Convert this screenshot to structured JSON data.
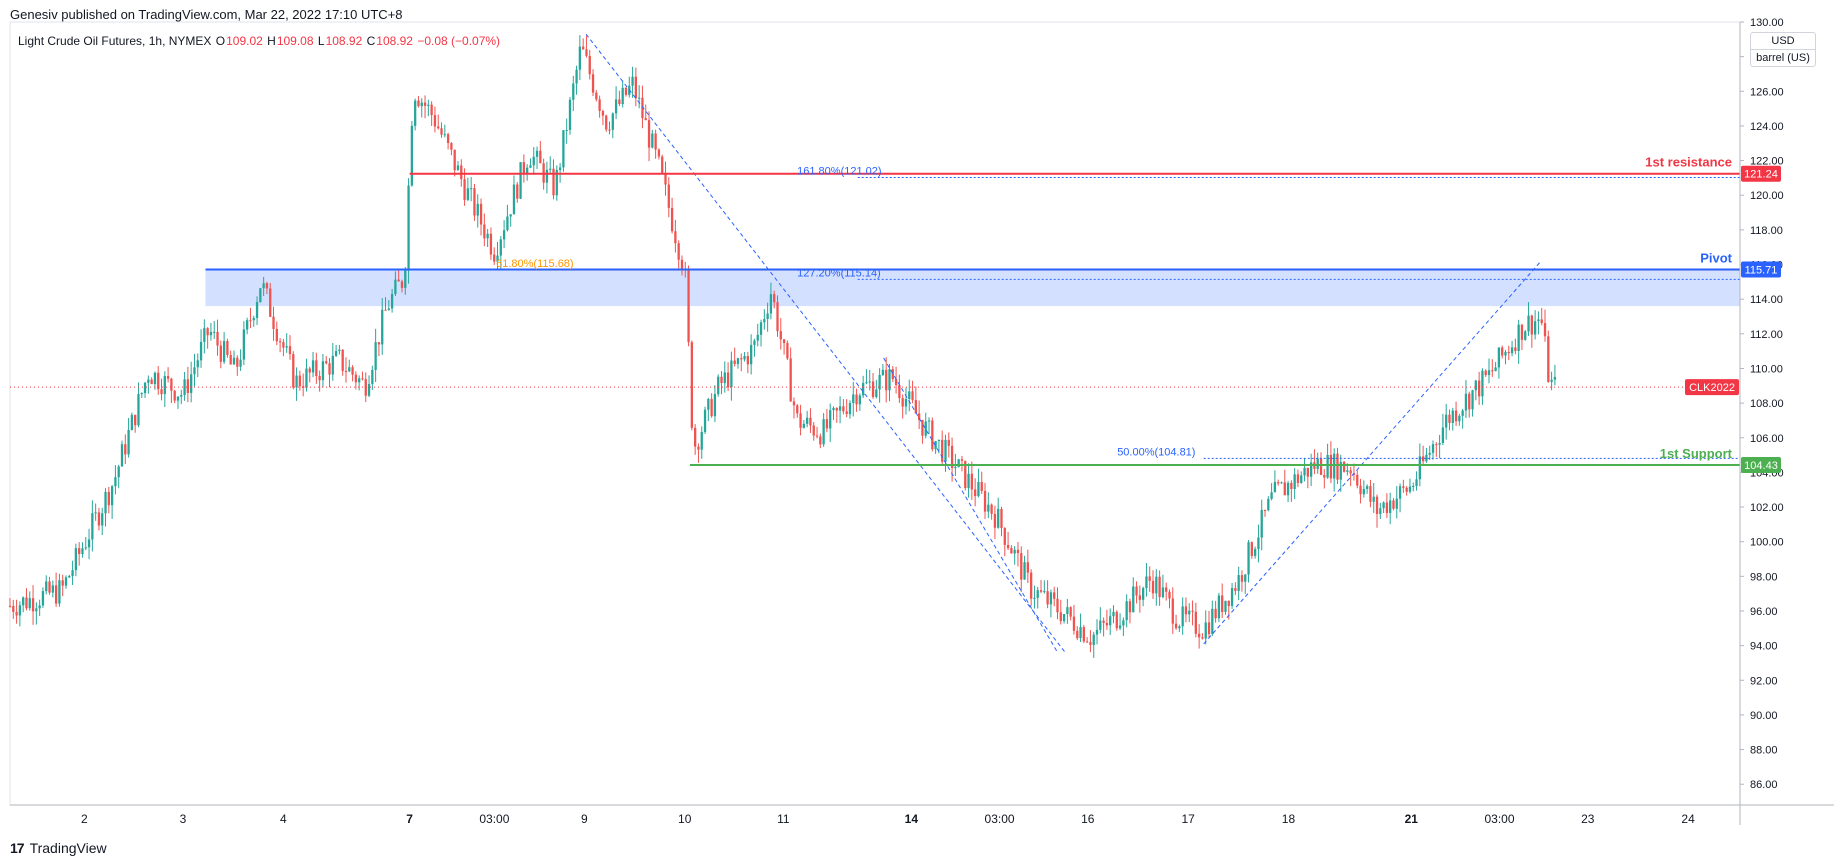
{
  "header": {
    "published": "Genesiv published on TradingView.com, Mar 22, 2022 17:10 UTC+8"
  },
  "legend": {
    "symbol": "Light Crude Oil Futures, 1h, NYMEX",
    "o_label": "O",
    "o_value": "109.02",
    "h_label": "H",
    "h_value": "109.08",
    "l_label": "L",
    "l_value": "108.92",
    "c_label": "C",
    "c_value": "108.92",
    "change": "−0.08 (−0.07%)"
  },
  "unit": {
    "currency": "USD",
    "measure": "barrel (US)"
  },
  "footer": {
    "brand": "TradingView"
  },
  "colors": {
    "up": "#26a69a",
    "down": "#ef5350",
    "resistance": "#f23645",
    "pivot": "#2962ff",
    "support": "#4caf50",
    "fib_blue": "#2962ff",
    "fib_orange": "#ff9800"
  },
  "chart_data": {
    "type": "candlestick",
    "ylim": [
      84.8,
      130.0
    ],
    "y_ticks": [
      "130.00",
      "128.00",
      "126.00",
      "124.00",
      "122.00",
      "120.00",
      "118.00",
      "116.00",
      "114.00",
      "112.00",
      "110.00",
      "108.00",
      "106.00",
      "104.00",
      "102.00",
      "100.00",
      "98.00",
      "96.00",
      "94.00",
      "92.00",
      "90.00",
      "88.00",
      "86.00"
    ],
    "x_tick_labels": [
      {
        "label": "2",
        "pos": 0.043,
        "bold": false
      },
      {
        "label": "3",
        "pos": 0.1,
        "bold": false
      },
      {
        "label": "4",
        "pos": 0.158,
        "bold": false
      },
      {
        "label": "7",
        "pos": 0.231,
        "bold": true
      },
      {
        "label": "03:00",
        "pos": 0.28,
        "bold": false
      },
      {
        "label": "9",
        "pos": 0.332,
        "bold": false
      },
      {
        "label": "10",
        "pos": 0.39,
        "bold": false
      },
      {
        "label": "11",
        "pos": 0.447,
        "bold": false
      },
      {
        "label": "14",
        "pos": 0.521,
        "bold": true
      },
      {
        "label": "03:00",
        "pos": 0.572,
        "bold": false
      },
      {
        "label": "16",
        "pos": 0.623,
        "bold": false
      },
      {
        "label": "17",
        "pos": 0.681,
        "bold": false
      },
      {
        "label": "18",
        "pos": 0.739,
        "bold": false
      },
      {
        "label": "21",
        "pos": 0.81,
        "bold": true
      },
      {
        "label": "03:00",
        "pos": 0.861,
        "bold": false
      },
      {
        "label": "23",
        "pos": 0.912,
        "bold": false
      },
      {
        "label": "24",
        "pos": 0.97,
        "bold": false
      }
    ],
    "price_path": [
      [
        0.0,
        96.3
      ],
      [
        0.03,
        97.2
      ],
      [
        0.06,
        103.5
      ],
      [
        0.08,
        109.8
      ],
      [
        0.1,
        108.5
      ],
      [
        0.115,
        112.2
      ],
      [
        0.13,
        109.8
      ],
      [
        0.145,
        115.0
      ],
      [
        0.165,
        109.2
      ],
      [
        0.19,
        110.5
      ],
      [
        0.205,
        109.0
      ],
      [
        0.218,
        113.6
      ],
      [
        0.228,
        115.3
      ],
      [
        0.233,
        126.2
      ],
      [
        0.245,
        124.5
      ],
      [
        0.265,
        120.0
      ],
      [
        0.28,
        116.8
      ],
      [
        0.3,
        122.5
      ],
      [
        0.315,
        120.4
      ],
      [
        0.33,
        128.5
      ],
      [
        0.345,
        124.2
      ],
      [
        0.36,
        126.4
      ],
      [
        0.375,
        121.6
      ],
      [
        0.39,
        115.7
      ],
      [
        0.395,
        105.4
      ],
      [
        0.41,
        109.0
      ],
      [
        0.43,
        111.2
      ],
      [
        0.44,
        114.5
      ],
      [
        0.455,
        107.0
      ],
      [
        0.47,
        106.3
      ],
      [
        0.49,
        108.8
      ],
      [
        0.51,
        109.5
      ],
      [
        0.53,
        106.4
      ],
      [
        0.55,
        104.0
      ],
      [
        0.57,
        101.5
      ],
      [
        0.59,
        97.3
      ],
      [
        0.61,
        95.8
      ],
      [
        0.625,
        94.5
      ],
      [
        0.64,
        95.7
      ],
      [
        0.66,
        97.9
      ],
      [
        0.675,
        95.6
      ],
      [
        0.69,
        95.0
      ],
      [
        0.71,
        97.8
      ],
      [
        0.73,
        102.6
      ],
      [
        0.755,
        104.5
      ],
      [
        0.775,
        104.3
      ],
      [
        0.79,
        101.8
      ],
      [
        0.81,
        103.2
      ],
      [
        0.83,
        107.0
      ],
      [
        0.855,
        109.6
      ],
      [
        0.875,
        112.5
      ],
      [
        0.885,
        112.9
      ],
      [
        0.89,
        109.1
      ],
      [
        0.893,
        108.92
      ]
    ],
    "levels": [
      {
        "name": "1st resistance",
        "price": 121.24,
        "label": "121.24",
        "x_start": 0.231,
        "color": "#f23645"
      },
      {
        "name": "Pivot",
        "price": 115.71,
        "label": "115.71",
        "x_start": 0.113,
        "color": "#2962ff"
      },
      {
        "name": "1st Support",
        "price": 104.43,
        "label": "104.43",
        "x_start": 0.393,
        "color": "#4caf50"
      }
    ],
    "pivot_zone": {
      "from_price": 113.6,
      "to_price": 115.71,
      "x_start": 0.113
    },
    "fib_labels": [
      {
        "text": "161.80%(121.02)",
        "price": 121.02,
        "x_start": 0.49,
        "x_text": 0.455,
        "color": "#2962ff"
      },
      {
        "text": "127.20%(115.14)",
        "price": 115.14,
        "x_start": 0.49,
        "x_text": 0.455,
        "color": "#2962ff"
      },
      {
        "text": "61.80%(115.68)",
        "price": 115.68,
        "x_start": 0.3,
        "x_text": 0.281,
        "color": "#ff9800"
      },
      {
        "text": "50.00%(104.81)",
        "price": 104.81,
        "x_start": 0.69,
        "x_text": 0.64,
        "color": "#2962ff"
      }
    ],
    "trend_lines": [
      {
        "from": [
          0.333,
          129.3
        ],
        "to": [
          0.61,
          93.6
        ]
      },
      {
        "from": [
          0.505,
          110.6
        ],
        "to": [
          0.605,
          93.7
        ]
      },
      {
        "from": [
          0.69,
          94.1
        ],
        "to": [
          0.885,
          116.2
        ]
      }
    ],
    "last_price": {
      "price": 108.92,
      "label": "CLK2022",
      "color": "#f23645"
    }
  }
}
